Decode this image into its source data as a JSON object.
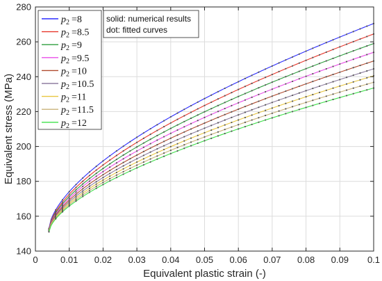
{
  "chart_data": {
    "type": "line",
    "title": "",
    "xlabel": "Equivalent plastic strain (-)",
    "ylabel": "Equivalent stress (MPa)",
    "xlim": [
      0,
      0.1
    ],
    "ylim": [
      140,
      280
    ],
    "xticks": [
      0,
      0.01,
      0.02,
      0.03,
      0.04,
      0.05,
      0.06,
      0.07,
      0.08,
      0.09,
      0.1
    ],
    "xtick_labels": [
      "0",
      "0.01",
      "0.02",
      "0.03",
      "0.04",
      "0.05",
      "0.06",
      "0.07",
      "0.08",
      "0.09",
      "0.1"
    ],
    "yticks": [
      140,
      160,
      180,
      200,
      220,
      240,
      260,
      280
    ],
    "ytick_labels": [
      "140",
      "160",
      "180",
      "200",
      "220",
      "240",
      "260",
      "280"
    ],
    "grid": true,
    "legend_position": "top-left",
    "annotation": [
      "solid: numerical results",
      "dot: fitted curves"
    ],
    "x_start": 0.004,
    "x_end": 0.1,
    "series": [
      {
        "name": "p2 = 8",
        "label_var": "p",
        "label_sub": "2",
        "label_val": "=8",
        "color": "#2b2bff",
        "y_start": 153,
        "y_end": 270.5
      },
      {
        "name": "p2 = 8.5",
        "label_var": "p",
        "label_sub": "2",
        "label_val": "=8.5",
        "color": "#e8372b",
        "y_start": 152.5,
        "y_end": 264.5
      },
      {
        "name": "p2 = 9",
        "label_var": "p",
        "label_sub": "2",
        "label_val": "=9",
        "color": "#2e9e3e",
        "y_start": 152.2,
        "y_end": 259
      },
      {
        "name": "p2 = 9.5",
        "label_var": "p",
        "label_sub": "2",
        "label_val": "=9.5",
        "color": "#e94ee8",
        "y_start": 152,
        "y_end": 254
      },
      {
        "name": "p2 = 10",
        "label_var": "p",
        "label_sub": "2",
        "label_val": "=10",
        "color": "#b04a2e",
        "y_start": 151.8,
        "y_end": 249
      },
      {
        "name": "p2 = 10.5",
        "label_var": "p",
        "label_sub": "2",
        "label_val": "=10.5",
        "color": "#8f7fa0",
        "y_start": 151.6,
        "y_end": 244.5
      },
      {
        "name": "p2 = 11",
        "label_var": "p",
        "label_sub": "2",
        "label_val": "=11",
        "color": "#e8c640",
        "y_start": 151.4,
        "y_end": 240.5
      },
      {
        "name": "p2 = 11.5",
        "label_var": "p",
        "label_sub": "2",
        "label_val": "=11.5",
        "color": "#c9b37a",
        "y_start": 151.2,
        "y_end": 236.8
      },
      {
        "name": "p2 = 12",
        "label_var": "p",
        "label_sub": "2",
        "label_val": "=12",
        "color": "#3ee04a",
        "y_start": 151,
        "y_end": 233.5
      }
    ]
  }
}
